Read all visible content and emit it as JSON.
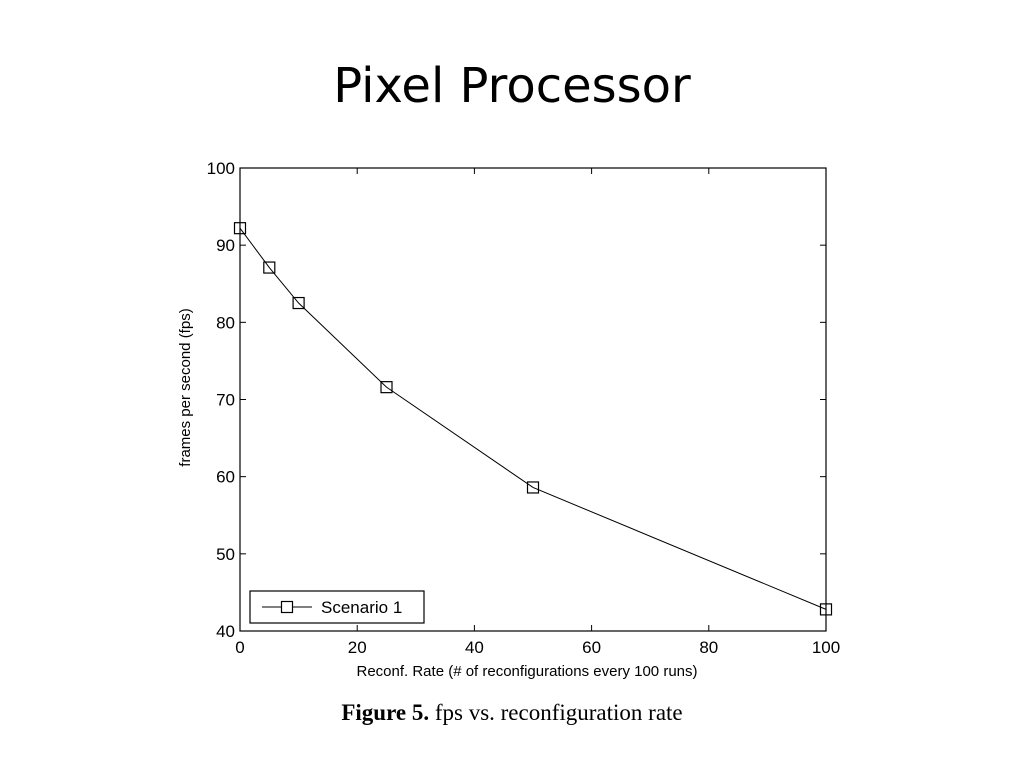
{
  "slide": {
    "title": "Pixel Processor"
  },
  "caption": {
    "prefix": "Figure 5.",
    "text": "fps vs. reconfiguration rate"
  },
  "chart_data": {
    "type": "line",
    "xlabel": "Reconf. Rate (# of reconfigurations every 100 runs)",
    "ylabel": "frames per second (fps)",
    "xlim": [
      0,
      100
    ],
    "ylim": [
      40,
      100
    ],
    "xticks": [
      0,
      20,
      40,
      60,
      80,
      100
    ],
    "yticks": [
      40,
      50,
      60,
      70,
      80,
      90,
      100
    ],
    "grid": false,
    "legend_position": "bottom-left",
    "series": [
      {
        "name": "Scenario 1",
        "marker": "square",
        "color": "#000000",
        "x": [
          0,
          5,
          10,
          25,
          50,
          100
        ],
        "y": [
          92.2,
          87.1,
          82.5,
          71.6,
          58.6,
          42.8
        ]
      }
    ]
  }
}
